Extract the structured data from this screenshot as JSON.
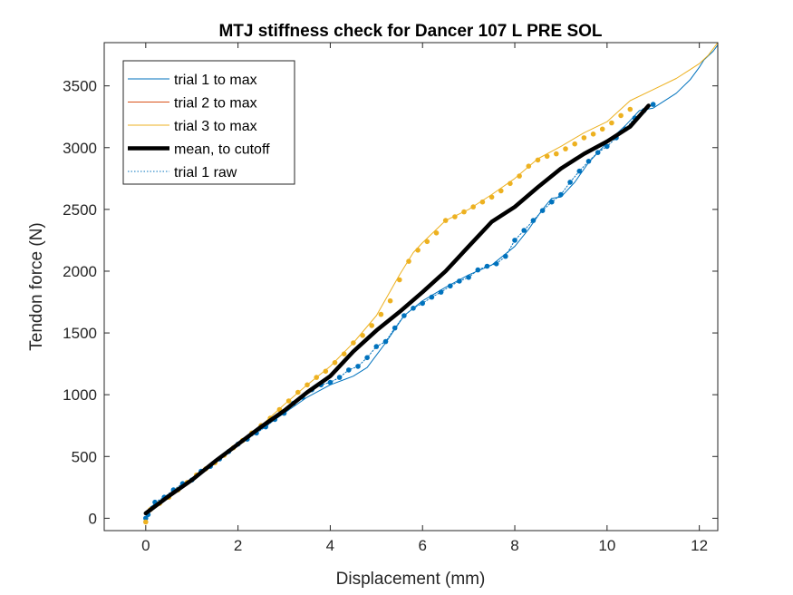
{
  "chart_data": {
    "type": "line",
    "title": "MTJ stiffness check for Dancer 107 L PRE SOL",
    "xlabel": "Displacement (mm)",
    "ylabel": "Tendon force (N)",
    "xlim": [
      -0.9,
      12.4
    ],
    "ylim": [
      -100,
      3850
    ],
    "xticks": [
      0,
      2,
      4,
      6,
      8,
      10,
      12
    ],
    "yticks": [
      0,
      500,
      1000,
      1500,
      2000,
      2500,
      3000,
      3500
    ],
    "xtick_labels": [
      "0",
      "2",
      "4",
      "6",
      "8",
      "10",
      "12"
    ],
    "ytick_labels": [
      "0",
      "500",
      "1000",
      "1500",
      "2000",
      "2500",
      "3000",
      "3500"
    ],
    "grid": false,
    "legend_position": "top-left",
    "series": [
      {
        "name": "trial 1 to max",
        "color": "#0072BD",
        "style": "thin",
        "x": [
          0,
          0.1,
          0.3,
          0.6,
          1.0,
          1.5,
          2.0,
          2.5,
          3.0,
          3.5,
          4.0,
          4.5,
          4.8,
          5.2,
          5.6,
          6.0,
          6.5,
          7.0,
          7.5,
          8.0,
          8.3,
          8.6,
          8.8,
          9.0,
          9.3,
          9.6,
          10.0,
          10.4,
          10.7,
          11.0,
          11.5,
          11.8,
          12.0,
          12.1,
          12.3,
          12.4
        ],
        "y": [
          0,
          90,
          140,
          200,
          300,
          450,
          600,
          720,
          850,
          980,
          1080,
          1150,
          1220,
          1420,
          1640,
          1760,
          1870,
          1970,
          2050,
          2200,
          2340,
          2500,
          2590,
          2600,
          2720,
          2880,
          3040,
          3180,
          3300,
          3320,
          3440,
          3550,
          3650,
          3710,
          3780,
          3830
        ]
      },
      {
        "name": "trial 2 to max",
        "color": "#D95319",
        "style": "thin",
        "x": [],
        "y": []
      },
      {
        "name": "trial 3 to max",
        "color": "#EDB120",
        "style": "thin",
        "x": [
          0,
          0.1,
          0.3,
          0.6,
          1.0,
          1.5,
          2.0,
          2.5,
          3.0,
          3.5,
          4.0,
          4.5,
          5.0,
          5.5,
          5.8,
          6.0,
          6.5,
          7.0,
          7.5,
          8.0,
          8.5,
          9.0,
          9.5,
          10.0,
          10.5,
          11.0,
          11.5,
          12.0,
          12.2,
          12.4
        ],
        "y": [
          -30,
          70,
          120,
          190,
          300,
          450,
          600,
          750,
          920,
          1080,
          1230,
          1420,
          1640,
          1970,
          2150,
          2230,
          2410,
          2500,
          2620,
          2750,
          2910,
          3010,
          3120,
          3210,
          3380,
          3470,
          3560,
          3680,
          3750,
          3850
        ]
      },
      {
        "name": "mean, to cutoff",
        "color": "#000000",
        "style": "thick",
        "x": [
          0,
          0.5,
          1.0,
          1.5,
          2.0,
          2.5,
          3.0,
          3.5,
          4.0,
          4.5,
          5.0,
          5.5,
          6.0,
          6.5,
          7.0,
          7.5,
          8.0,
          8.5,
          9.0,
          9.5,
          10.0,
          10.5,
          10.9
        ],
        "y": [
          40,
          180,
          310,
          460,
          600,
          740,
          870,
          1020,
          1150,
          1350,
          1520,
          1670,
          1830,
          2000,
          2200,
          2400,
          2520,
          2680,
          2830,
          2950,
          3050,
          3170,
          3340
        ]
      },
      {
        "name": "trial 1 raw",
        "color": "#0072BD",
        "style": "dotted-markers",
        "x": [
          0,
          0.05,
          0.2,
          0.4,
          0.6,
          0.8,
          1.0,
          1.2,
          1.4,
          1.6,
          1.8,
          2.0,
          2.2,
          2.4,
          2.6,
          2.8,
          3.0,
          3.2,
          3.4,
          3.6,
          3.8,
          4.0,
          4.2,
          4.4,
          4.6,
          4.8,
          5.0,
          5.2,
          5.4,
          5.6,
          5.8,
          6.0,
          6.2,
          6.4,
          6.6,
          6.8,
          7.0,
          7.2,
          7.4,
          7.6,
          7.8,
          8.0,
          8.2,
          8.4,
          8.6,
          8.8,
          9.0,
          9.2,
          9.4,
          9.6,
          9.8,
          10.0,
          10.2,
          10.4,
          10.6,
          10.8,
          11.0
        ],
        "y": [
          0,
          30,
          130,
          170,
          230,
          280,
          310,
          380,
          420,
          480,
          540,
          600,
          640,
          690,
          740,
          800,
          850,
          930,
          980,
          1040,
          1080,
          1100,
          1140,
          1200,
          1230,
          1300,
          1390,
          1430,
          1540,
          1640,
          1700,
          1740,
          1790,
          1830,
          1880,
          1920,
          1950,
          2010,
          2040,
          2060,
          2120,
          2250,
          2330,
          2410,
          2490,
          2560,
          2620,
          2720,
          2810,
          2890,
          2960,
          3010,
          3080,
          3150,
          3240,
          3300,
          3350
        ]
      }
    ],
    "markers": [
      {
        "color": "#EDB120",
        "x": [
          0,
          0.1,
          0.3,
          0.5,
          0.7,
          0.9,
          1.1,
          1.3,
          1.5,
          1.7,
          1.9,
          2.1,
          2.3,
          2.5,
          2.7,
          2.9,
          3.1,
          3.3,
          3.5,
          3.7,
          3.9,
          4.1,
          4.3,
          4.5,
          4.7,
          4.9,
          5.1,
          5.3,
          5.5,
          5.7,
          5.9,
          6.1,
          6.3,
          6.5,
          6.7,
          6.9,
          7.1,
          7.3,
          7.5,
          7.7,
          7.9,
          8.1,
          8.3,
          8.5,
          8.7,
          8.9,
          9.1,
          9.3,
          9.5,
          9.7,
          9.9,
          10.1,
          10.3,
          10.5
        ],
        "y": [
          -30,
          70,
          120,
          170,
          230,
          290,
          350,
          400,
          450,
          510,
          570,
          630,
          690,
          750,
          810,
          880,
          950,
          1020,
          1080,
          1140,
          1190,
          1260,
          1330,
          1420,
          1480,
          1560,
          1650,
          1760,
          1930,
          2080,
          2170,
          2240,
          2310,
          2410,
          2440,
          2480,
          2520,
          2560,
          2600,
          2650,
          2710,
          2770,
          2850,
          2900,
          2930,
          2950,
          2990,
          3030,
          3080,
          3110,
          3150,
          3200,
          3260,
          3310
        ]
      }
    ]
  }
}
